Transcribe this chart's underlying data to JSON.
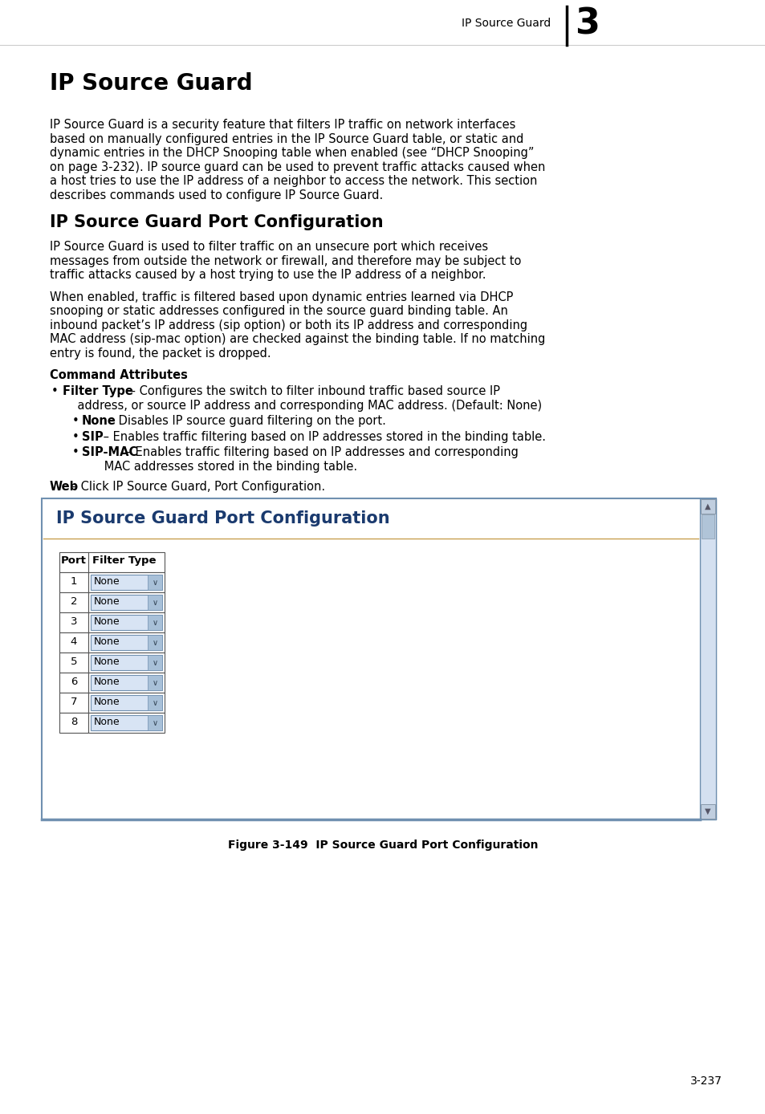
{
  "page_bg": "#ffffff",
  "header_text": "IP Source Guard",
  "header_chapter": "3",
  "main_title": "IP Source Guard",
  "section_title": "IP Source Guard Port Configuration",
  "para1_lines": [
    "IP Source Guard is a security feature that filters IP traffic on network interfaces",
    "based on manually configured entries in the IP Source Guard table, or static and",
    "dynamic entries in the DHCP Snooping table when enabled (see “DHCP Snooping”",
    "on page 3-232). IP source guard can be used to prevent traffic attacks caused when",
    "a host tries to use the IP address of a neighbor to access the network. This section",
    "describes commands used to configure IP Source Guard."
  ],
  "para2_lines": [
    "IP Source Guard is used to filter traffic on an unsecure port which receives",
    "messages from outside the network or firewall, and therefore may be subject to",
    "traffic attacks caused by a host trying to use the IP address of a neighbor."
  ],
  "para3_lines": [
    "When enabled, traffic is filtered based upon dynamic entries learned via DHCP",
    "snooping or static addresses configured in the source guard binding table. An",
    "inbound packet’s IP address (sip option) or both its IP address and corresponding",
    "MAC address (sip-mac option) are checked against the binding table. If no matching",
    "entry is found, the packet is dropped."
  ],
  "cmd_attr": "Command Attributes",
  "b1_bold": "Filter Type",
  "b1_rest": " – Configures the switch to filter inbound traffic based source IP",
  "b1_line2": "    address, or source IP address and corresponding MAC address. (Default: None)",
  "sb1_bold": "None",
  "sb1_rest": " – Disables IP source guard filtering on the port.",
  "sb2_bold": "SIP",
  "sb2_rest": " – Enables traffic filtering based on IP addresses stored in the binding table.",
  "sb3_bold": "SIP-MAC",
  "sb3_rest": " – Enables traffic filtering based on IP addresses and corresponding",
  "sb3_line2": "      MAC addresses stored in the binding table.",
  "web_bold": "Web",
  "web_rest": " – Click IP Source Guard, Port Configuration.",
  "figure_title": "IP Source Guard Port Configuration",
  "figure_label": "Figure 3-149  IP Source Guard Port Configuration",
  "table_rows": [
    1,
    2,
    3,
    4,
    5,
    6,
    7,
    8
  ],
  "page_number": "3-237",
  "box_border_color": "#7090b0",
  "scrollbar_bg": "#d4e0f0",
  "scrollbar_border": "#7090b0",
  "dropdown_bg": "#d8e4f4",
  "dropdown_dark": "#a8c0d8",
  "dropdown_border": "#7090b0",
  "title_color": "#1a3a6e",
  "divider_color": "#c8a050"
}
